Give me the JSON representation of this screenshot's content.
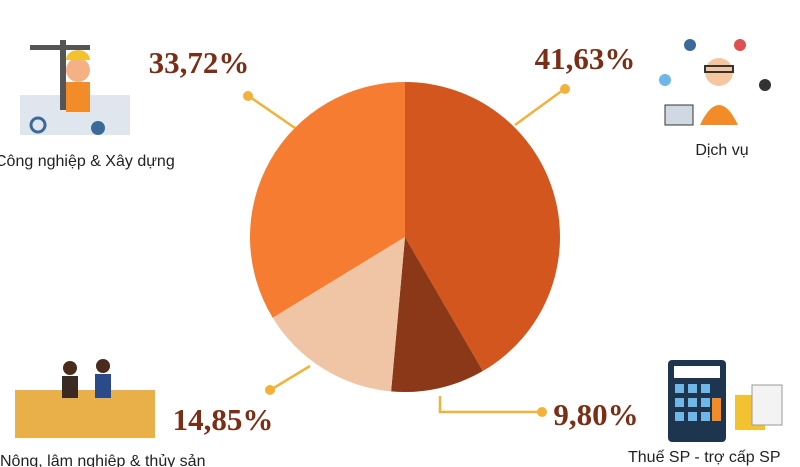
{
  "chart_data": {
    "type": "pie",
    "categories": [
      "Dịch vụ",
      "Thuế SP - trợ cấp SP",
      "Nông, lâm nghiệp & thủy sản",
      "Công nghiệp & Xây dựng"
    ],
    "values": [
      41.63,
      9.8,
      14.85,
      33.72
    ],
    "value_labels": [
      "41,63%",
      "9,80%",
      "14,85%",
      "33,72%"
    ],
    "colors": [
      "#d4561f",
      "#8a3817",
      "#efc5a5",
      "#f57c30"
    ]
  }
}
